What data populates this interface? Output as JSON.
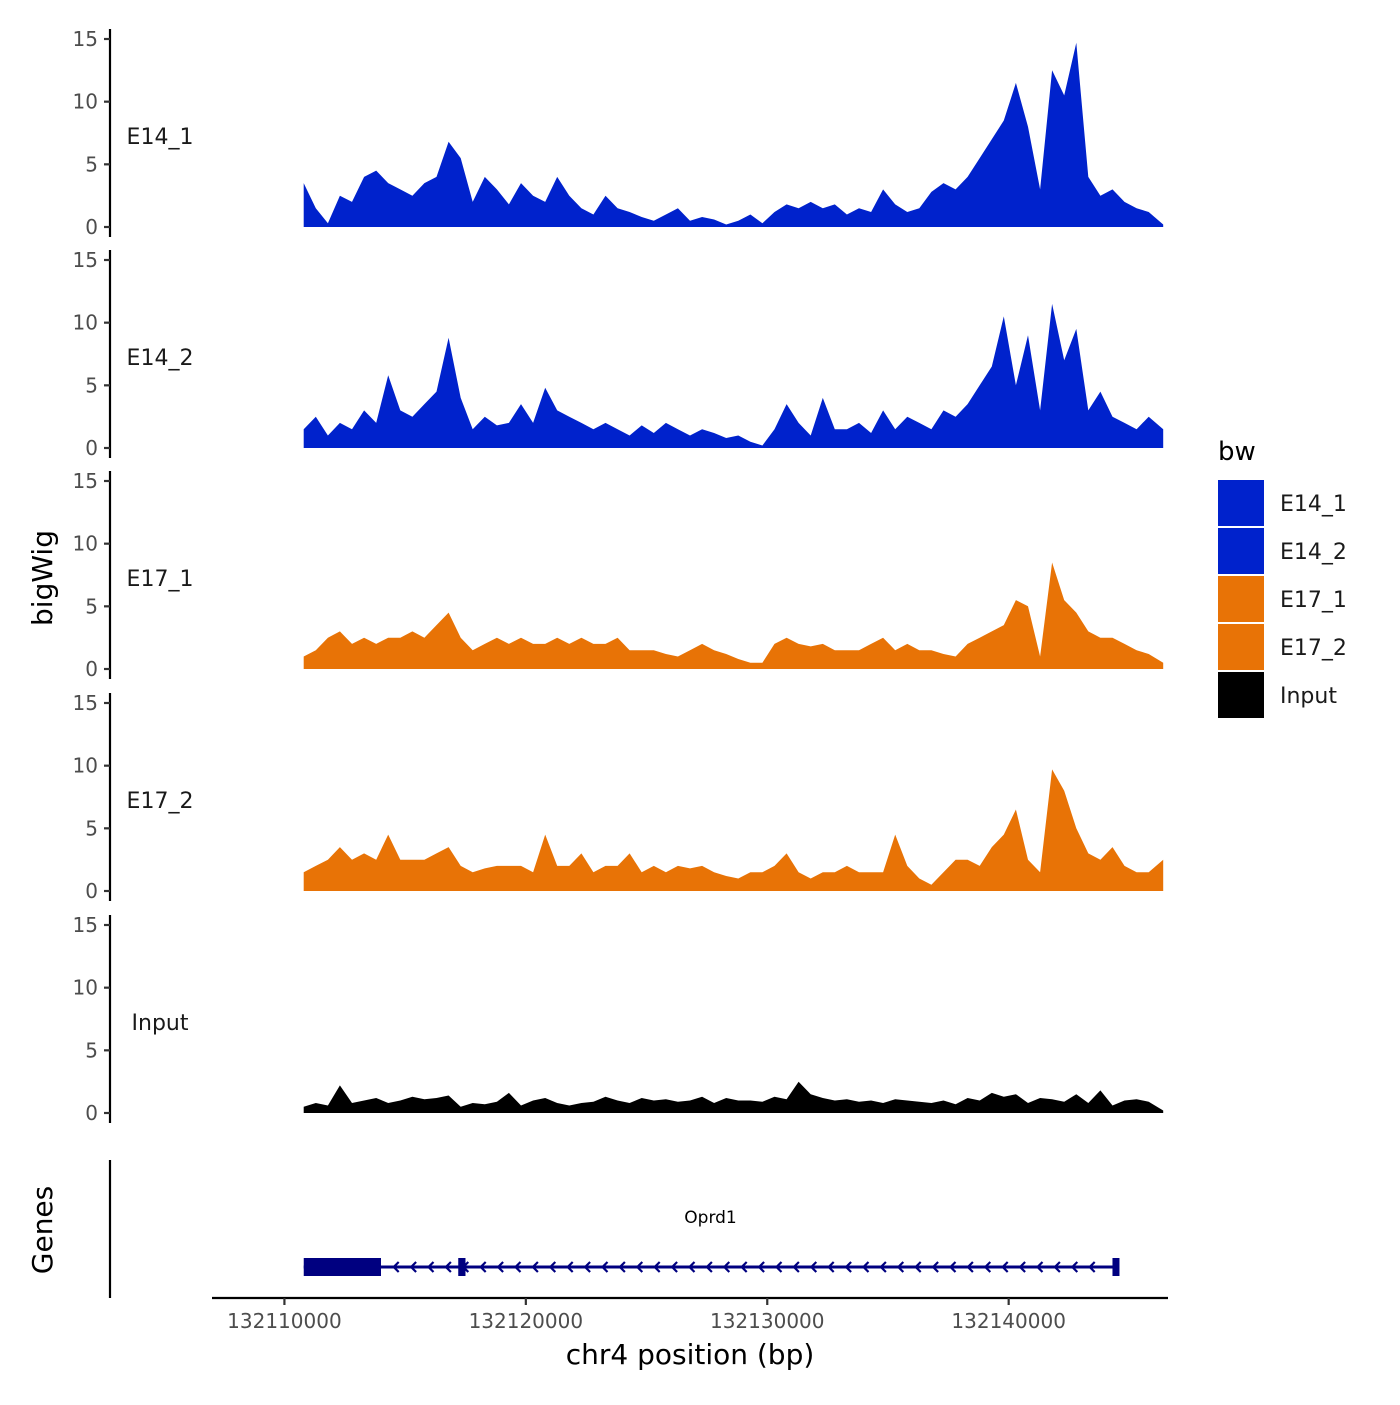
{
  "chart_data": {
    "type": "area",
    "xlabel": "chr4 position (bp)",
    "ylabel": "bigWig",
    "genes_axis_label": "Genes",
    "xlim": [
      132107000,
      132146600
    ],
    "x_ticks": [
      132110000,
      132120000,
      132130000,
      132140000
    ],
    "x_tick_labels": [
      "132110000",
      "132120000",
      "132130000",
      "132140000"
    ],
    "ylim": [
      0,
      15
    ],
    "y_ticks": [
      0,
      5,
      10,
      15
    ],
    "y_tick_labels": [
      "0",
      "5",
      "10",
      "15"
    ],
    "data_range": [
      132110800,
      132146400
    ],
    "series": [
      {
        "name": "E14_1",
        "color": "#0022CC",
        "x": [
          132110800,
          132111300,
          132111800,
          132112300,
          132112800,
          132113300,
          132113800,
          132114300,
          132114800,
          132115300,
          132115800,
          132116300,
          132116800,
          132117300,
          132117800,
          132118300,
          132118800,
          132119300,
          132119800,
          132120300,
          132120800,
          132121300,
          132121800,
          132122300,
          132122800,
          132123300,
          132123800,
          132124300,
          132124800,
          132125300,
          132125800,
          132126300,
          132126800,
          132127300,
          132127800,
          132128300,
          132128800,
          132129300,
          132129800,
          132130300,
          132130800,
          132131300,
          132131800,
          132132300,
          132132800,
          132133300,
          132133800,
          132134300,
          132134800,
          132135300,
          132135800,
          132136300,
          132136800,
          132137300,
          132137800,
          132138300,
          132138800,
          132139300,
          132139800,
          132140300,
          132140800,
          132141300,
          132141800,
          132142300,
          132142800,
          132143300,
          132143800,
          132144300,
          132144800,
          132145300,
          132145800,
          132146400
        ],
        "values": [
          3.5,
          1.5,
          0.3,
          2.5,
          2.0,
          4.0,
          4.5,
          3.5,
          3.0,
          2.5,
          3.5,
          4.0,
          6.8,
          5.5,
          2.0,
          4.0,
          3.0,
          1.8,
          3.5,
          2.5,
          2.0,
          4.0,
          2.5,
          1.5,
          1.0,
          2.5,
          1.5,
          1.2,
          0.8,
          0.5,
          1.0,
          1.5,
          0.5,
          0.8,
          0.6,
          0.2,
          0.5,
          1.0,
          0.3,
          1.2,
          1.8,
          1.5,
          2.0,
          1.5,
          1.8,
          1.0,
          1.5,
          1.2,
          3.0,
          1.8,
          1.2,
          1.5,
          2.8,
          3.5,
          3.0,
          4.0,
          5.5,
          7.0,
          8.5,
          11.5,
          8.0,
          3.0,
          12.5,
          10.5,
          14.7,
          4.0,
          2.5,
          3.0,
          2.0,
          1.5,
          1.2,
          0.2
        ]
      },
      {
        "name": "E14_2",
        "color": "#0022CC",
        "x": [
          132110800,
          132111300,
          132111800,
          132112300,
          132112800,
          132113300,
          132113800,
          132114300,
          132114800,
          132115300,
          132115800,
          132116300,
          132116800,
          132117300,
          132117800,
          132118300,
          132118800,
          132119300,
          132119800,
          132120300,
          132120800,
          132121300,
          132121800,
          132122300,
          132122800,
          132123300,
          132123800,
          132124300,
          132124800,
          132125300,
          132125800,
          132126300,
          132126800,
          132127300,
          132127800,
          132128300,
          132128800,
          132129300,
          132129800,
          132130300,
          132130800,
          132131300,
          132131800,
          132132300,
          132132800,
          132133300,
          132133800,
          132134300,
          132134800,
          132135300,
          132135800,
          132136300,
          132136800,
          132137300,
          132137800,
          132138300,
          132138800,
          132139300,
          132139800,
          132140300,
          132140800,
          132141300,
          132141800,
          132142300,
          132142800,
          132143300,
          132143800,
          132144300,
          132144800,
          132145300,
          132145800,
          132146400
        ],
        "values": [
          1.5,
          2.5,
          1.0,
          2.0,
          1.5,
          3.0,
          2.0,
          5.8,
          3.0,
          2.5,
          3.5,
          4.5,
          8.8,
          4.0,
          1.5,
          2.5,
          1.8,
          2.0,
          3.5,
          2.0,
          4.8,
          3.0,
          2.5,
          2.0,
          1.5,
          2.0,
          1.5,
          1.0,
          1.8,
          1.2,
          2.0,
          1.5,
          1.0,
          1.5,
          1.2,
          0.8,
          1.0,
          0.5,
          0.2,
          1.5,
          3.5,
          2.0,
          1.0,
          4.0,
          1.5,
          1.5,
          2.0,
          1.2,
          3.0,
          1.5,
          2.5,
          2.0,
          1.5,
          3.0,
          2.5,
          3.5,
          5.0,
          6.5,
          10.5,
          5.0,
          9.0,
          3.0,
          11.5,
          7.0,
          9.5,
          3.0,
          4.5,
          2.5,
          2.0,
          1.5,
          2.5,
          1.5
        ]
      },
      {
        "name": "E17_1",
        "color": "#E87306",
        "x": [
          132110800,
          132111300,
          132111800,
          132112300,
          132112800,
          132113300,
          132113800,
          132114300,
          132114800,
          132115300,
          132115800,
          132116300,
          132116800,
          132117300,
          132117800,
          132118300,
          132118800,
          132119300,
          132119800,
          132120300,
          132120800,
          132121300,
          132121800,
          132122300,
          132122800,
          132123300,
          132123800,
          132124300,
          132124800,
          132125300,
          132125800,
          132126300,
          132126800,
          132127300,
          132127800,
          132128300,
          132128800,
          132129300,
          132129800,
          132130300,
          132130800,
          132131300,
          132131800,
          132132300,
          132132800,
          132133300,
          132133800,
          132134300,
          132134800,
          132135300,
          132135800,
          132136300,
          132136800,
          132137300,
          132137800,
          132138300,
          132138800,
          132139300,
          132139800,
          132140300,
          132140800,
          132141300,
          132141800,
          132142300,
          132142800,
          132143300,
          132143800,
          132144300,
          132144800,
          132145300,
          132145800,
          132146400
        ],
        "values": [
          1.0,
          1.5,
          2.5,
          3.0,
          2.0,
          2.5,
          2.0,
          2.5,
          2.5,
          3.0,
          2.5,
          3.5,
          4.5,
          2.5,
          1.5,
          2.0,
          2.5,
          2.0,
          2.5,
          2.0,
          2.0,
          2.5,
          2.0,
          2.5,
          2.0,
          2.0,
          2.5,
          1.5,
          1.5,
          1.5,
          1.2,
          1.0,
          1.5,
          2.0,
          1.5,
          1.2,
          0.8,
          0.5,
          0.5,
          2.0,
          2.5,
          2.0,
          1.8,
          2.0,
          1.5,
          1.5,
          1.5,
          2.0,
          2.5,
          1.5,
          2.0,
          1.5,
          1.5,
          1.2,
          1.0,
          2.0,
          2.5,
          3.0,
          3.5,
          5.5,
          5.0,
          1.0,
          8.5,
          5.5,
          4.5,
          3.0,
          2.5,
          2.5,
          2.0,
          1.5,
          1.2,
          0.5
        ]
      },
      {
        "name": "E17_2",
        "color": "#E87306",
        "x": [
          132110800,
          132111300,
          132111800,
          132112300,
          132112800,
          132113300,
          132113800,
          132114300,
          132114800,
          132115300,
          132115800,
          132116300,
          132116800,
          132117300,
          132117800,
          132118300,
          132118800,
          132119300,
          132119800,
          132120300,
          132120800,
          132121300,
          132121800,
          132122300,
          132122800,
          132123300,
          132123800,
          132124300,
          132124800,
          132125300,
          132125800,
          132126300,
          132126800,
          132127300,
          132127800,
          132128300,
          132128800,
          132129300,
          132129800,
          132130300,
          132130800,
          132131300,
          132131800,
          132132300,
          132132800,
          132133300,
          132133800,
          132134300,
          132134800,
          132135300,
          132135800,
          132136300,
          132136800,
          132137300,
          132137800,
          132138300,
          132138800,
          132139300,
          132139800,
          132140300,
          132140800,
          132141300,
          132141800,
          132142300,
          132142800,
          132143300,
          132143800,
          132144300,
          132144800,
          132145300,
          132145800,
          132146400
        ],
        "values": [
          1.5,
          2.0,
          2.5,
          3.5,
          2.5,
          3.0,
          2.5,
          4.5,
          2.5,
          2.5,
          2.5,
          3.0,
          3.5,
          2.0,
          1.5,
          1.8,
          2.0,
          2.0,
          2.0,
          1.5,
          4.5,
          2.0,
          2.0,
          3.0,
          1.5,
          2.0,
          2.0,
          3.0,
          1.5,
          2.0,
          1.5,
          2.0,
          1.8,
          2.0,
          1.5,
          1.2,
          1.0,
          1.5,
          1.5,
          2.0,
          3.0,
          1.5,
          1.0,
          1.5,
          1.5,
          2.0,
          1.5,
          1.5,
          1.5,
          4.5,
          2.0,
          1.0,
          0.5,
          1.5,
          2.5,
          2.5,
          2.0,
          3.5,
          4.5,
          6.5,
          2.5,
          1.5,
          9.7,
          8.0,
          5.0,
          3.0,
          2.5,
          3.5,
          2.0,
          1.5,
          1.5,
          2.5
        ]
      },
      {
        "name": "Input",
        "color": "#000000",
        "x": [
          132110800,
          132111300,
          132111800,
          132112300,
          132112800,
          132113300,
          132113800,
          132114300,
          132114800,
          132115300,
          132115800,
          132116300,
          132116800,
          132117300,
          132117800,
          132118300,
          132118800,
          132119300,
          132119800,
          132120300,
          132120800,
          132121300,
          132121800,
          132122300,
          132122800,
          132123300,
          132123800,
          132124300,
          132124800,
          132125300,
          132125800,
          132126300,
          132126800,
          132127300,
          132127800,
          132128300,
          132128800,
          132129300,
          132129800,
          132130300,
          132130800,
          132131300,
          132131800,
          132132300,
          132132800,
          132133300,
          132133800,
          132134300,
          132134800,
          132135300,
          132135800,
          132136300,
          132136800,
          132137300,
          132137800,
          132138300,
          132138800,
          132139300,
          132139800,
          132140300,
          132140800,
          132141300,
          132141800,
          132142300,
          132142800,
          132143300,
          132143800,
          132144300,
          132144800,
          132145300,
          132145800,
          132146400
        ],
        "values": [
          0.5,
          0.8,
          0.6,
          2.2,
          0.8,
          1.0,
          1.2,
          0.8,
          1.0,
          1.3,
          1.1,
          1.2,
          1.4,
          0.5,
          0.8,
          0.7,
          0.9,
          1.6,
          0.6,
          1.0,
          1.2,
          0.8,
          0.6,
          0.8,
          0.9,
          1.3,
          1.0,
          0.8,
          1.2,
          1.0,
          1.1,
          0.9,
          1.0,
          1.3,
          0.8,
          1.2,
          1.0,
          1.0,
          0.9,
          1.3,
          1.1,
          2.5,
          1.5,
          1.2,
          1.0,
          1.1,
          0.9,
          1.0,
          0.8,
          1.1,
          1.0,
          0.9,
          0.8,
          1.0,
          0.7,
          1.2,
          1.0,
          1.6,
          1.3,
          1.5,
          0.8,
          1.2,
          1.1,
          0.9,
          1.5,
          0.8,
          1.8,
          0.6,
          1.0,
          1.1,
          0.9,
          0.2
        ]
      }
    ],
    "genes": [
      {
        "name": "Oprd1",
        "start": 132110800,
        "end": 132144500,
        "strand": "-",
        "exons": [
          [
            132110800,
            132114000
          ],
          [
            132117200,
            132117500
          ],
          [
            132144300,
            132144500
          ]
        ]
      }
    ],
    "legend": {
      "title": "bw",
      "position": "right",
      "entries": [
        {
          "label": "E14_1",
          "color": "#0022CC"
        },
        {
          "label": "E14_2",
          "color": "#0022CC"
        },
        {
          "label": "E17_1",
          "color": "#E87306"
        },
        {
          "label": "E17_2",
          "color": "#E87306"
        },
        {
          "label": "Input",
          "color": "#000000"
        }
      ]
    },
    "colors": {
      "gene": "#000080",
      "axis": "#000000"
    }
  }
}
